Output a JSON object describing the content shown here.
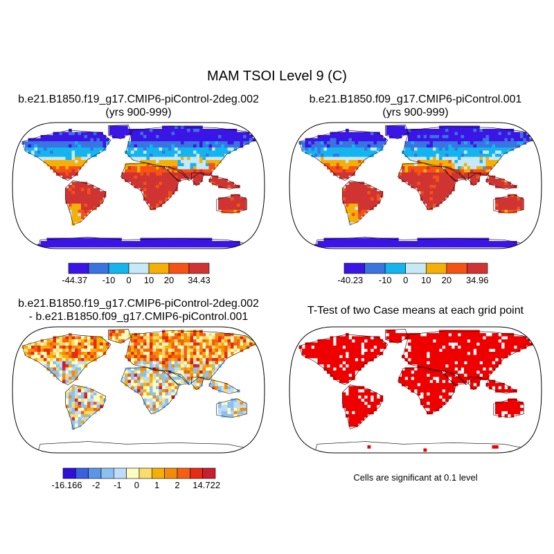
{
  "page_title": "MAM TSOI Level 9 (C)",
  "panels": [
    {
      "title_line1": "b.e21.B1850.f19_g17.CMIP6-piControl-2deg.002",
      "title_line2": "(yrs 900-999)",
      "colorbar": {
        "colors": [
          "#3b14e6",
          "#3a74e0",
          "#14b4ee",
          "#c7e9f5",
          "#f4b006",
          "#f65214",
          "#cf3433"
        ],
        "labels": [
          "-44.37",
          "-10",
          "0",
          "10",
          "20",
          "34.43"
        ]
      }
    },
    {
      "title_line1": "b.e21.B1850.f09_g17.CMIP6-piControl.001",
      "title_line2": "(yrs 900-999)",
      "colorbar": {
        "colors": [
          "#3b14e6",
          "#3a74e0",
          "#14b4ee",
          "#c7e9f5",
          "#f4b006",
          "#f65214",
          "#cf3433"
        ],
        "labels": [
          "-40.23",
          "-10",
          "0",
          "10",
          "20",
          "34.96"
        ]
      }
    },
    {
      "title_line1": "b.e21.B1850.f19_g17.CMIP6-piControl-2deg.002",
      "title_line2": "- b.e21.B1850.f09_g17.CMIP6-piControl.001",
      "colorbar": {
        "colors": [
          "#2e0fd8",
          "#3a5fe0",
          "#5b95e8",
          "#8cc0f0",
          "#bcdcf7",
          "#fdfcc0",
          "#f8dc6e",
          "#f4b006",
          "#f58a0a",
          "#f46012",
          "#e62a14",
          "#c81e2e"
        ],
        "labels": [
          "-16.166",
          "-2",
          "-1",
          "0",
          "1",
          "2",
          "14.722"
        ]
      }
    },
    {
      "title_line1": "T-Test of two Case means at each grid point",
      "footnote": "Cells are significant at 0.1 level",
      "sig_color": "#ee0000"
    }
  ],
  "chart_data": [
    {
      "type": "heatmap",
      "title": "b.e21.B1850.f19_g17.CMIP6-piControl-2deg.002 (yrs 900-999)",
      "projection": "robinson",
      "variable": "TSOI",
      "range": [
        -44.37,
        34.43
      ],
      "colorbar_ticks": [
        "-44.37",
        "-10",
        "0",
        "10",
        "20",
        "34.43"
      ]
    },
    {
      "type": "heatmap",
      "title": "b.e21.B1850.f09_g17.CMIP6-piControl.001 (yrs 900-999)",
      "projection": "robinson",
      "variable": "TSOI",
      "range": [
        -40.23,
        34.96
      ],
      "colorbar_ticks": [
        "-40.23",
        "-10",
        "0",
        "10",
        "20",
        "34.96"
      ]
    },
    {
      "type": "heatmap",
      "title": "b.e21.B1850.f19_g17.CMIP6-piControl-2deg.002 - b.e21.B1850.f09_g17.CMIP6-piControl.001",
      "projection": "robinson",
      "variable": "TSOI difference",
      "range": [
        -16.166,
        14.722
      ],
      "colorbar_ticks": [
        "-16.166",
        "-2",
        "-1",
        "0",
        "1",
        "2",
        "14.722"
      ]
    },
    {
      "type": "heatmap",
      "title": "T-Test of two Case means at each grid point",
      "projection": "robinson",
      "significance_level": 0.1
    }
  ]
}
